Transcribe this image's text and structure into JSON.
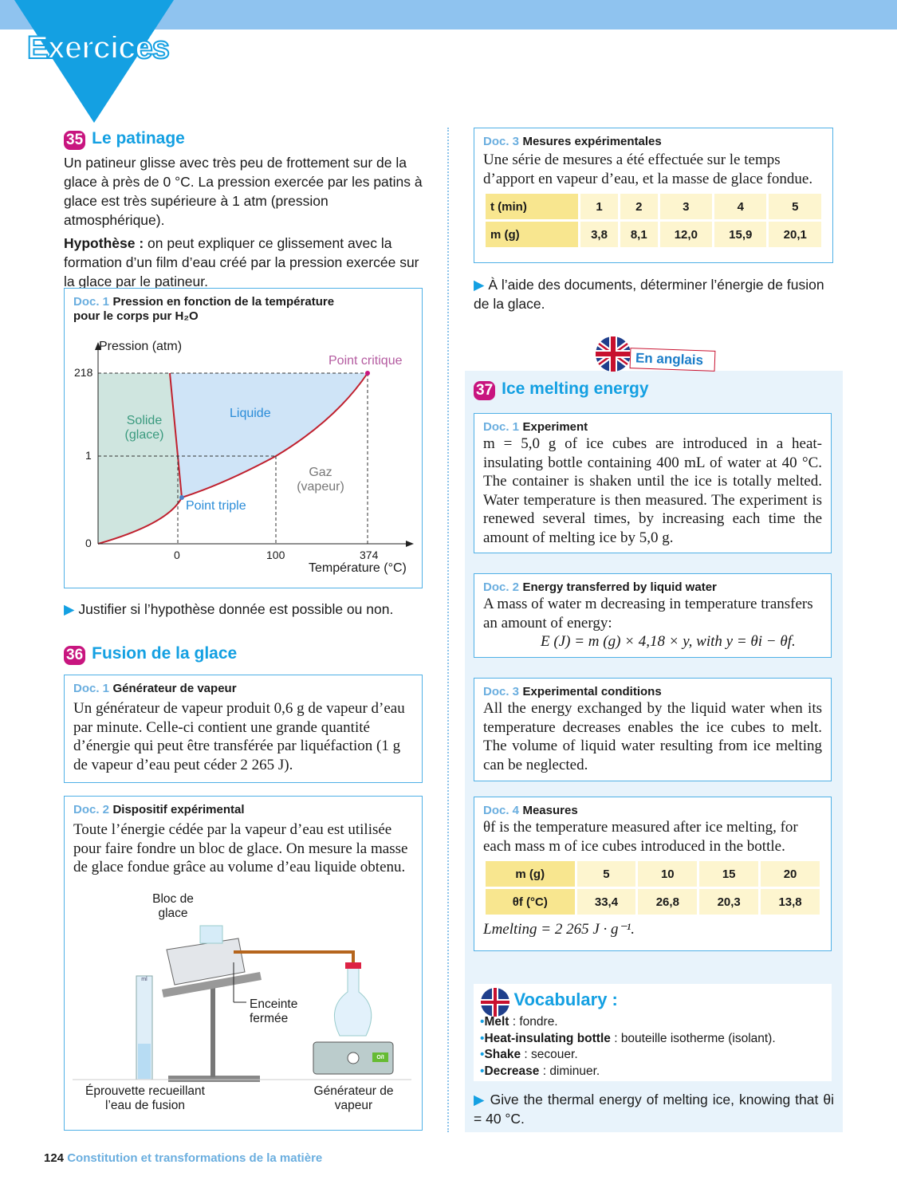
{
  "header": {
    "title": "Exercices"
  },
  "ex35": {
    "num": "35",
    "title": "Le patinage",
    "text": "Un patineur glisse avec très peu de frottement sur de la glace à près de 0 °C. La pression exercée par les patins à glace est très supérieure à 1 atm (pression atmosphérique).",
    "hyp_label": "Hypothèse :",
    "hyp": " on peut expliquer ce glissement avec la formation d’un film d’eau créé par la pression exercée sur la glace par le patineur.",
    "doc1": {
      "label": "Doc. 1",
      "title": "Pression en fonction de la température pour le corps pur H₂O",
      "diagram": {
        "ylabel": "Pression (atm)",
        "xlabel": "Température (°C)",
        "yticks": [
          "218",
          "1",
          "0"
        ],
        "xticks": [
          "0",
          "100",
          "374"
        ],
        "solid": "Solide (glace)",
        "liquid": "Liquide",
        "gas": "Gaz (vapeur)",
        "critical": "Point critique",
        "triple": "Point triple",
        "colors": {
          "solid": "#cfe5df",
          "liquid": "#cfe4f7",
          "curve": "#c0202e"
        }
      }
    },
    "question": "Justifier si l’hypothèse donnée est possible ou non."
  },
  "ex36": {
    "num": "36",
    "title": "Fusion de la glace",
    "doc1": {
      "label": "Doc. 1",
      "title": "Générateur de vapeur",
      "text": "Un générateur de vapeur produit 0,6 g de vapeur d’eau par minute. Celle-ci contient une grande quantité d’énergie qui peut être transférée par liquéfaction (1 g de vapeur d’eau peut céder 2 265 J)."
    },
    "doc2": {
      "label": "Doc. 2",
      "title": "Dispositif expérimental",
      "text": "Toute l’énergie cédée par la vapeur d’eau est utilisée pour faire fondre un bloc de glace. On mesure la masse de glace fondue grâce au volume d’eau liquide obtenu.",
      "labels": {
        "bloc": "Bloc de glace",
        "enceinte": "Enceinte fermée",
        "eprouvette": "Éprouvette recueillant l’eau de fusion",
        "generateur": "Générateur de vapeur",
        "ml": "ml",
        "onoff": "O/I"
      }
    },
    "doc3": {
      "label": "Doc. 3",
      "title": "Mesures expérimentales",
      "text": "Une série de mesures a été effectuée sur le temps d’apport en vapeur d’eau, et la masse de glace fondue.",
      "rows": [
        [
          "t (min)",
          "1",
          "2",
          "3",
          "4",
          "5"
        ],
        [
          "m (g)",
          "3,8",
          "8,1",
          "12,0",
          "15,9",
          "20,1"
        ]
      ]
    },
    "question": "À l’aide des documents, déterminer l’énergie de fusion de la glace."
  },
  "ex37": {
    "badge": "En anglais",
    "num": "37",
    "title": "Ice melting energy",
    "doc1": {
      "label": "Doc. 1",
      "title": "Experiment",
      "text": "m = 5,0 g of ice cubes are introduced in a heat-insulating bottle containing 400 mL of water at 40 °C. The container is shaken until the ice is totally melted. Water temperature is then measured. The experiment is renewed several times, by increasing each time the amount of melting ice by 5,0 g."
    },
    "doc2": {
      "label": "Doc. 2",
      "title": "Energy transferred by liquid water",
      "text": "A mass of water m decreasing in temperature transfers an amount of energy:",
      "formula": "E (J) = m (g) × 4,18 × y, with y = θi − θf."
    },
    "doc3": {
      "label": "Doc. 3",
      "title": "Experimental conditions",
      "text": "All the energy exchanged by the liquid water when its temperature decreases enables the ice cubes to melt. The volume of liquid water resulting from ice melting can be neglected."
    },
    "doc4": {
      "label": "Doc. 4",
      "title": "Measures",
      "text": "θf is the temperature measured after ice melting, for each mass m of ice cubes introduced in the bottle.",
      "rows": [
        [
          "m (g)",
          "5",
          "10",
          "15",
          "20"
        ],
        [
          "θf (°C)",
          "33,4",
          "26,8",
          "20,3",
          "13,8"
        ]
      ],
      "footer": "Lmelting = 2 265 J · g⁻¹."
    },
    "vocab": {
      "title": "Vocabulary :",
      "items": [
        [
          "Melt",
          "fondre."
        ],
        [
          "Heat-insulating bottle",
          "bouteille isotherme (isolant)."
        ],
        [
          "Shake",
          "secouer."
        ],
        [
          "Decrease",
          "diminuer."
        ]
      ]
    },
    "question": "Give the thermal energy of melting ice, knowing that θi = 40 °C."
  },
  "footer": {
    "page": "124",
    "chapter": "Constitution et transformations de la matière"
  }
}
